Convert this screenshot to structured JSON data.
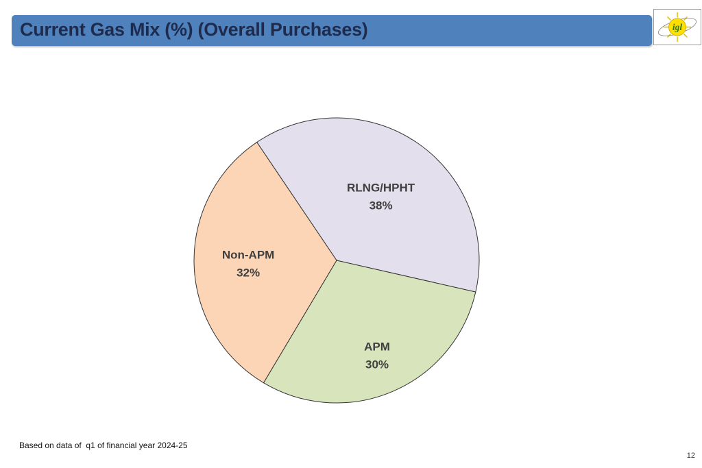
{
  "slide": {
    "title": "Current Gas Mix (%) (Overall Purchases)",
    "footnote": "Based on data of  q1 of financial year 2024-25",
    "page_number": "12",
    "logo_text": "igl"
  },
  "colors": {
    "title_bar": "#4f81bd",
    "title_text": "#1f2b4d",
    "slice_outline": "#333333"
  },
  "chart_data": {
    "type": "pie",
    "start_angle_deg": 326,
    "direction": "clockwise",
    "slices": [
      {
        "label": "RLNG/HPHT",
        "value": 38,
        "display": "38%",
        "color": "#e4dfec"
      },
      {
        "label": "APM",
        "value": 30,
        "display": "30%",
        "color": "#d8e4bc"
      },
      {
        "label": "Non-APM",
        "value": 32,
        "display": "32%",
        "color": "#fbd5b5"
      }
    ]
  }
}
